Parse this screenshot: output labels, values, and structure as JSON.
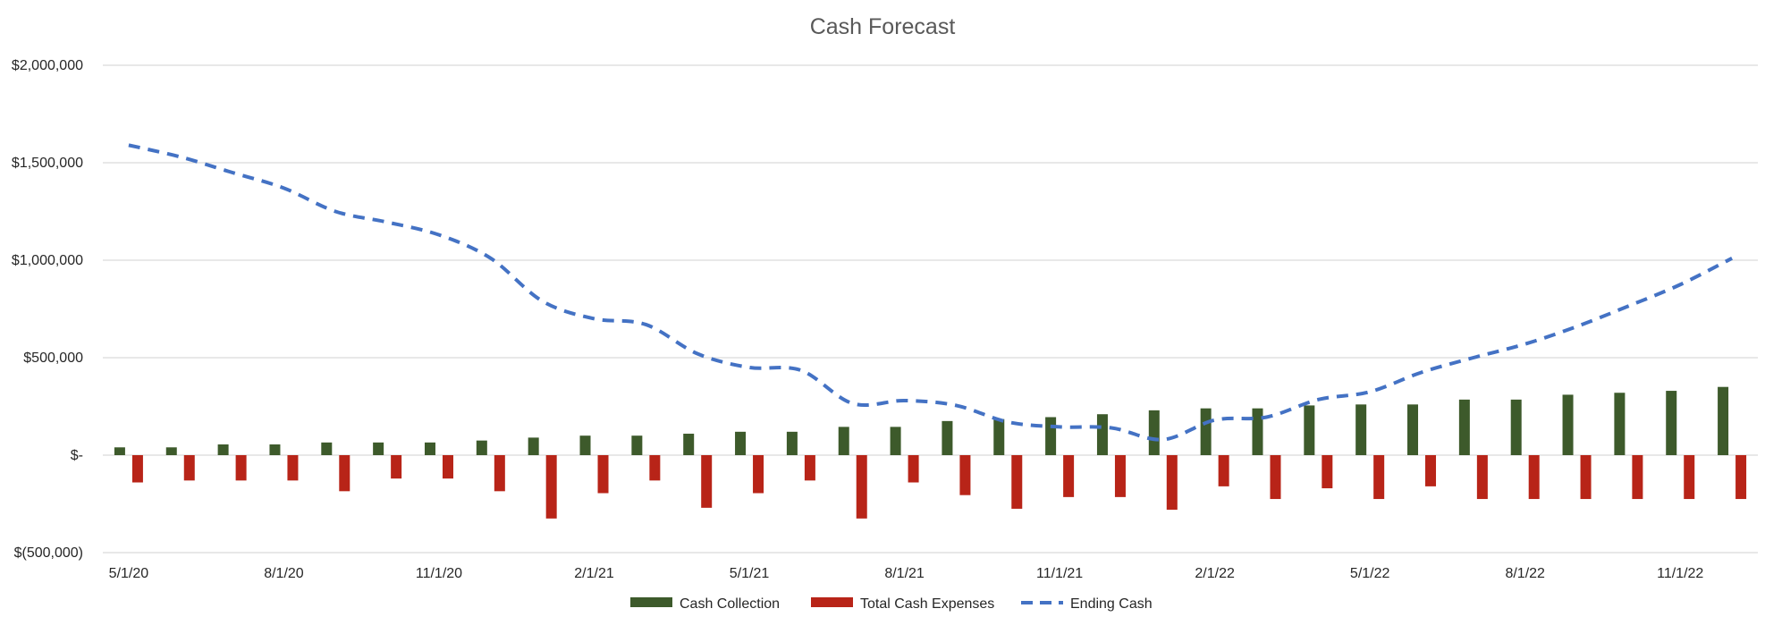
{
  "chart_data": {
    "type": "bar",
    "title": "Cash Forecast",
    "xlabel": "",
    "ylabel": "",
    "ylim": [
      -500000,
      2000000
    ],
    "yticks": [
      {
        "value": 2000000,
        "label": "$2,000,000"
      },
      {
        "value": 1500000,
        "label": "$1,500,000"
      },
      {
        "value": 1000000,
        "label": "$1,000,000"
      },
      {
        "value": 500000,
        "label": "$500,000"
      },
      {
        "value": 0,
        "label": "$-"
      },
      {
        "value": -500000,
        "label": "$(500,000)"
      }
    ],
    "grid": true,
    "legend_position": "bottom",
    "categories": [
      "5/1/20",
      "6/1/20",
      "7/1/20",
      "8/1/20",
      "9/1/20",
      "10/1/20",
      "11/1/20",
      "12/1/20",
      "1/1/21",
      "2/1/21",
      "3/1/21",
      "4/1/21",
      "5/1/21",
      "6/1/21",
      "7/1/21",
      "8/1/21",
      "9/1/21",
      "10/1/21",
      "11/1/21",
      "12/1/21",
      "1/1/22",
      "2/1/22",
      "3/1/22",
      "4/1/22",
      "5/1/22",
      "6/1/22",
      "7/1/22",
      "8/1/22",
      "9/1/22",
      "10/1/22",
      "11/1/22",
      "12/1/22"
    ],
    "xtick_labels": [
      {
        "index": 0,
        "label": "5/1/20"
      },
      {
        "index": 3,
        "label": "8/1/20"
      },
      {
        "index": 6,
        "label": "11/1/20"
      },
      {
        "index": 9,
        "label": "2/1/21"
      },
      {
        "index": 12,
        "label": "5/1/21"
      },
      {
        "index": 15,
        "label": "8/1/21"
      },
      {
        "index": 18,
        "label": "11/1/21"
      },
      {
        "index": 21,
        "label": "2/1/22"
      },
      {
        "index": 24,
        "label": "5/1/22"
      },
      {
        "index": 27,
        "label": "8/1/22"
      },
      {
        "index": 30,
        "label": "11/1/22"
      }
    ],
    "series": [
      {
        "name": "Cash Collection",
        "kind": "bar",
        "color": "#3d5a2b",
        "values": [
          40000,
          40000,
          55000,
          55000,
          65000,
          65000,
          65000,
          75000,
          90000,
          100000,
          100000,
          110000,
          120000,
          120000,
          145000,
          145000,
          175000,
          185000,
          195000,
          210000,
          230000,
          240000,
          240000,
          255000,
          260000,
          260000,
          285000,
          285000,
          310000,
          320000,
          330000,
          350000
        ]
      },
      {
        "name": "Total Cash Expenses",
        "kind": "bar",
        "color": "#b82418",
        "values": [
          -140000,
          -130000,
          -130000,
          -130000,
          -185000,
          -120000,
          -120000,
          -185000,
          -325000,
          -195000,
          -130000,
          -270000,
          -195000,
          -130000,
          -325000,
          -140000,
          -205000,
          -275000,
          -215000,
          -215000,
          -280000,
          -160000,
          -225000,
          -170000,
          -225000,
          -160000,
          -225000,
          -225000,
          -225000,
          -225000,
          -225000,
          -225000
        ]
      },
      {
        "name": "Ending Cash",
        "kind": "line",
        "dashed": true,
        "color": "#4472c4",
        "values": [
          1590000,
          1530000,
          1450000,
          1370000,
          1250000,
          1195000,
          1130000,
          1010000,
          790000,
          700000,
          670000,
          520000,
          450000,
          435000,
          265000,
          280000,
          255000,
          170000,
          145000,
          140000,
          80000,
          180000,
          195000,
          285000,
          325000,
          425000,
          500000,
          570000,
          660000,
          765000,
          875000,
          1010000
        ]
      }
    ]
  }
}
